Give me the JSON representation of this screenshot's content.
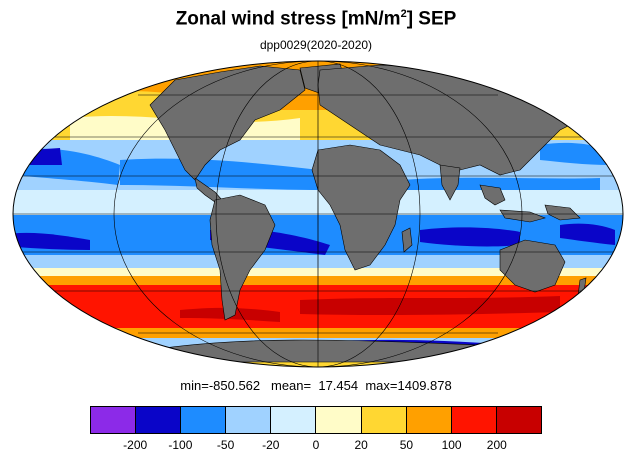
{
  "title": {
    "text": "Zonal wind stress [mN/m",
    "sup": "2",
    "suffix": "] SEP"
  },
  "subtitle": "dpp0029(2020-2020)",
  "stats": {
    "min_label": "min=",
    "min": "-850.562",
    "mean_label": "mean=",
    "mean": "17.454",
    "max_label": "max=",
    "max": "1409.878"
  },
  "colorbar": {
    "colors": [
      "#8c2ae8",
      "#0a05c8",
      "#1e8cff",
      "#a0d2ff",
      "#d4f0ff",
      "#fffcc8",
      "#ffd732",
      "#ffa000",
      "#ff1400",
      "#c80000"
    ],
    "tick_labels": [
      "-200",
      "-100",
      "-50",
      "-20",
      "0",
      "20",
      "50",
      "100",
      "200"
    ]
  },
  "map": {
    "projection": "mollweide",
    "land_color": "#6e6e6e",
    "grid": true
  }
}
